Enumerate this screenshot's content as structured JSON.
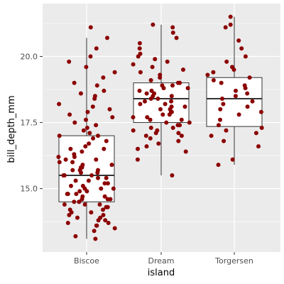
{
  "chart_data": {
    "type": "boxplot-jitter",
    "xlabel": "island",
    "ylabel": "bill_depth_mm",
    "categories": [
      "Biscoe",
      "Dream",
      "Torgersen"
    ],
    "ylim": [
      12.6,
      22.0
    ],
    "yticks": [
      15.0,
      17.5,
      20.0
    ],
    "ytick_labels": [
      "15.0",
      "17.5",
      "20.0"
    ],
    "grid": true,
    "colors": {
      "panel": "#ebebeb",
      "grid": "#ffffff",
      "point": "#8b0000",
      "box": "#333333"
    },
    "boxes": [
      {
        "category": "Biscoe",
        "whisker_low": 13.1,
        "q1": 14.5,
        "median": 15.5,
        "q3": 17.0,
        "whisker_high": 20.7
      },
      {
        "category": "Dream",
        "whisker_low": 15.5,
        "q1": 17.5,
        "median": 18.4,
        "q3": 19.0,
        "whisker_high": 21.2
      },
      {
        "category": "Torgersen",
        "whisker_low": 15.9,
        "q1": 17.35,
        "median": 18.4,
        "q3": 19.2,
        "whisker_high": 21.5
      }
    ],
    "points": [
      {
        "category": "Biscoe",
        "values": [
          13.1,
          13.2,
          13.4,
          13.5,
          13.6,
          13.6,
          13.7,
          13.7,
          13.8,
          13.8,
          13.9,
          13.9,
          14.0,
          14.0,
          14.1,
          14.1,
          14.2,
          14.2,
          14.3,
          14.3,
          14.4,
          14.4,
          14.4,
          14.5,
          14.5,
          14.5,
          14.6,
          14.6,
          14.6,
          14.7,
          14.7,
          14.8,
          14.8,
          14.8,
          14.9,
          14.9,
          15.0,
          15.0,
          15.0,
          15.1,
          15.1,
          15.2,
          15.2,
          15.3,
          15.3,
          15.4,
          15.4,
          15.5,
          15.5,
          15.5,
          15.6,
          15.6,
          15.7,
          15.7,
          15.7,
          15.8,
          15.8,
          15.9,
          15.9,
          16.0,
          16.0,
          16.1,
          16.1,
          16.2,
          16.2,
          16.3,
          16.4,
          16.5,
          16.5,
          16.6,
          16.7,
          16.8,
          16.9,
          17.0,
          17.0,
          17.1,
          17.2,
          17.3,
          17.4,
          17.5,
          17.6,
          17.7,
          17.8,
          17.9,
          18.0,
          18.1,
          18.2,
          18.4,
          18.5,
          18.6,
          18.7,
          18.9,
          19.0,
          19.2,
          19.4,
          19.6,
          19.8,
          20.0,
          20.3,
          20.7,
          21.1
        ]
      },
      {
        "category": "Dream",
        "values": [
          15.5,
          16.1,
          16.4,
          16.5,
          16.6,
          16.7,
          16.8,
          16.9,
          17.0,
          17.0,
          17.1,
          17.1,
          17.2,
          17.2,
          17.3,
          17.3,
          17.4,
          17.4,
          17.5,
          17.5,
          17.6,
          17.6,
          17.7,
          17.7,
          17.8,
          17.8,
          17.9,
          17.9,
          18.0,
          18.0,
          18.1,
          18.1,
          18.2,
          18.2,
          18.3,
          18.3,
          18.4,
          18.4,
          18.5,
          18.5,
          18.6,
          18.6,
          18.7,
          18.7,
          18.8,
          18.8,
          18.9,
          18.9,
          19.0,
          19.0,
          19.1,
          19.2,
          19.3,
          19.4,
          19.5,
          19.6,
          19.7,
          19.8,
          19.9,
          20.0,
          20.1,
          20.3,
          20.5,
          20.7,
          20.9,
          21.1,
          21.2
        ]
      },
      {
        "category": "Torgersen",
        "values": [
          15.9,
          16.1,
          16.6,
          16.8,
          17.0,
          17.1,
          17.2,
          17.3,
          17.4,
          17.6,
          17.8,
          17.9,
          18.0,
          18.1,
          18.2,
          18.3,
          18.4,
          18.5,
          18.6,
          18.7,
          18.8,
          18.9,
          19.0,
          19.1,
          19.2,
          19.3,
          19.4,
          19.5,
          19.6,
          19.8,
          20.0,
          20.3,
          20.6,
          21.1,
          21.2,
          21.5
        ]
      }
    ]
  }
}
